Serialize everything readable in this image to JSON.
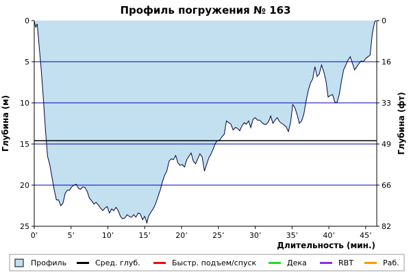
{
  "chart_data": {
    "type": "area",
    "title": "Профиль погружения № 163",
    "xlabel": "Длительность (мин.)",
    "ylabel_left": "Глубина (м)",
    "ylabel_right": "Глубина (фт)",
    "xlim": [
      0,
      46.5
    ],
    "ylim": [
      25,
      0
    ],
    "x_ticks": [
      0,
      5,
      10,
      15,
      20,
      25,
      30,
      35,
      40,
      45
    ],
    "x_tick_labels": [
      "0’",
      "5’",
      "10’",
      "15’",
      "20’",
      "25’",
      "30’",
      "35’",
      "40’",
      "45’"
    ],
    "y_ticks_left": [
      0,
      5,
      10,
      15,
      20,
      25
    ],
    "y_tick_labels_left": [
      "0",
      "5",
      "10",
      "15",
      "20",
      "25"
    ],
    "y_ticks_right_depth_m": [
      0,
      5,
      10,
      15,
      20,
      25
    ],
    "y_tick_labels_right": [
      "0",
      "16",
      "33",
      "49",
      "66",
      "82"
    ],
    "grid_depths_m": [
      5,
      10,
      15,
      20
    ],
    "average_depth_m": 14.6,
    "colors": {
      "profile_fill": "#c2e0f0",
      "profile_line": "#000040",
      "grid": "#0000c0",
      "average": "#000000",
      "fast_ascent": "#ff0000",
      "deco": "#22dd22",
      "rbt": "#8833dd",
      "work": "#ff9900"
    },
    "series": [
      {
        "name": "Профиль",
        "points": [
          [
            0,
            0.1
          ],
          [
            0.2,
            0.8
          ],
          [
            0.4,
            0.4
          ],
          [
            0.6,
            2.5
          ],
          [
            0.9,
            5.5
          ],
          [
            1.2,
            9
          ],
          [
            1.5,
            13
          ],
          [
            1.8,
            16.5
          ],
          [
            2.1,
            17.5
          ],
          [
            2.4,
            19
          ],
          [
            2.7,
            20.5
          ],
          [
            3.0,
            21.8
          ],
          [
            3.3,
            21.8
          ],
          [
            3.6,
            22.5
          ],
          [
            3.9,
            22.2
          ],
          [
            4.2,
            21.0
          ],
          [
            4.5,
            20.6
          ],
          [
            4.8,
            20.6
          ],
          [
            5.1,
            20.2
          ],
          [
            5.4,
            20.0
          ],
          [
            5.7,
            19.9
          ],
          [
            6.0,
            20.4
          ],
          [
            6.3,
            20.5
          ],
          [
            6.6,
            20.2
          ],
          [
            6.9,
            20.3
          ],
          [
            7.2,
            20.8
          ],
          [
            7.5,
            21.6
          ],
          [
            7.8,
            21.9
          ],
          [
            8.1,
            22.3
          ],
          [
            8.4,
            22.1
          ],
          [
            8.7,
            22.4
          ],
          [
            9.0,
            22.8
          ],
          [
            9.3,
            23.1
          ],
          [
            9.6,
            22.8
          ],
          [
            9.9,
            22.6
          ],
          [
            10.2,
            23.4
          ],
          [
            10.5,
            22.9
          ],
          [
            10.8,
            23.1
          ],
          [
            11.1,
            22.7
          ],
          [
            11.4,
            23.1
          ],
          [
            11.7,
            23.8
          ],
          [
            12.0,
            24.1
          ],
          [
            12.3,
            24.0
          ],
          [
            12.6,
            23.6
          ],
          [
            12.9,
            23.8
          ],
          [
            13.2,
            23.9
          ],
          [
            13.5,
            23.6
          ],
          [
            13.8,
            23.9
          ],
          [
            14.1,
            23.4
          ],
          [
            14.4,
            23.5
          ],
          [
            14.7,
            24.2
          ],
          [
            15.0,
            23.8
          ],
          [
            15.3,
            24.6
          ],
          [
            15.5,
            23.8
          ],
          [
            15.9,
            23.2
          ],
          [
            16.2,
            22.8
          ],
          [
            16.5,
            22.2
          ],
          [
            16.8,
            21.4
          ],
          [
            17.1,
            20.6
          ],
          [
            17.4,
            19.6
          ],
          [
            17.7,
            18.8
          ],
          [
            18.0,
            18.3
          ],
          [
            18.3,
            17.1
          ],
          [
            18.6,
            16.8
          ],
          [
            18.9,
            16.9
          ],
          [
            19.2,
            16.4
          ],
          [
            19.5,
            17.3
          ],
          [
            19.8,
            17.6
          ],
          [
            20.1,
            17.5
          ],
          [
            20.4,
            17.8
          ],
          [
            20.7,
            16.9
          ],
          [
            21.0,
            16.5
          ],
          [
            21.3,
            16.1
          ],
          [
            21.6,
            17.1
          ],
          [
            21.9,
            17.4
          ],
          [
            22.2,
            16.8
          ],
          [
            22.5,
            16.2
          ],
          [
            22.8,
            16.6
          ],
          [
            23.1,
            18.3
          ],
          [
            23.4,
            17.5
          ],
          [
            23.7,
            16.7
          ],
          [
            24.0,
            16.2
          ],
          [
            24.3,
            15.6
          ],
          [
            24.6,
            14.9
          ],
          [
            24.9,
            14.6
          ],
          [
            25.2,
            14.5
          ],
          [
            25.5,
            14.1
          ],
          [
            25.8,
            13.8
          ],
          [
            26.1,
            12.2
          ],
          [
            26.4,
            12.4
          ],
          [
            26.7,
            12.6
          ],
          [
            27.0,
            13.3
          ],
          [
            27.3,
            13.0
          ],
          [
            27.6,
            13.1
          ],
          [
            27.9,
            13.4
          ],
          [
            28.2,
            12.8
          ],
          [
            28.5,
            12.4
          ],
          [
            28.8,
            12.6
          ],
          [
            29.1,
            12.2
          ],
          [
            29.4,
            13.0
          ],
          [
            29.7,
            12.0
          ],
          [
            30.0,
            11.8
          ],
          [
            30.3,
            12.1
          ],
          [
            30.6,
            12.1
          ],
          [
            30.9,
            12.4
          ],
          [
            31.2,
            12.6
          ],
          [
            31.5,
            12.6
          ],
          [
            31.8,
            12.3
          ],
          [
            32.1,
            11.6
          ],
          [
            32.4,
            12.5
          ],
          [
            32.7,
            12.1
          ],
          [
            33.0,
            11.8
          ],
          [
            33.3,
            12.3
          ],
          [
            33.6,
            12.5
          ],
          [
            33.9,
            12.7
          ],
          [
            34.2,
            12.9
          ],
          [
            34.5,
            13.5
          ],
          [
            34.8,
            12.4
          ],
          [
            35.1,
            10.2
          ],
          [
            35.4,
            10.6
          ],
          [
            35.7,
            11.5
          ],
          [
            36.0,
            12.5
          ],
          [
            36.3,
            12.2
          ],
          [
            36.6,
            11.4
          ],
          [
            36.9,
            9.8
          ],
          [
            37.2,
            8.5
          ],
          [
            37.5,
            7.6
          ],
          [
            37.8,
            7.1
          ],
          [
            38.1,
            5.6
          ],
          [
            38.4,
            6.8
          ],
          [
            38.7,
            6.5
          ],
          [
            39.0,
            5.4
          ],
          [
            39.3,
            6.2
          ],
          [
            39.6,
            7.3
          ],
          [
            39.9,
            9.3
          ],
          [
            40.2,
            9.1
          ],
          [
            40.5,
            9.0
          ],
          [
            40.8,
            9.9
          ],
          [
            41.1,
            10.0
          ],
          [
            41.4,
            9.0
          ],
          [
            41.7,
            7.4
          ],
          [
            42.0,
            6.0
          ],
          [
            42.3,
            5.4
          ],
          [
            42.6,
            4.8
          ],
          [
            42.9,
            4.4
          ],
          [
            43.2,
            5.2
          ],
          [
            43.5,
            6.0
          ],
          [
            43.8,
            5.6
          ],
          [
            44.1,
            5.2
          ],
          [
            44.4,
            4.9
          ],
          [
            44.7,
            5.0
          ],
          [
            45.0,
            4.6
          ],
          [
            45.3,
            4.4
          ],
          [
            45.6,
            4.2
          ],
          [
            45.9,
            1.6
          ],
          [
            46.2,
            0.2
          ],
          [
            46.4,
            0.0
          ]
        ]
      }
    ],
    "legend": [
      {
        "key": "profile",
        "label": "Профиль",
        "marker": "box"
      },
      {
        "key": "average",
        "label": "Сред. глуб.",
        "marker": "line"
      },
      {
        "key": "fast_ascent",
        "label": "Быстр. подъем/спуск",
        "marker": "line"
      },
      {
        "key": "deco",
        "label": "Дека",
        "marker": "line"
      },
      {
        "key": "rbt",
        "label": "RBT",
        "marker": "line"
      },
      {
        "key": "work",
        "label": "Раб.",
        "marker": "line"
      }
    ]
  }
}
